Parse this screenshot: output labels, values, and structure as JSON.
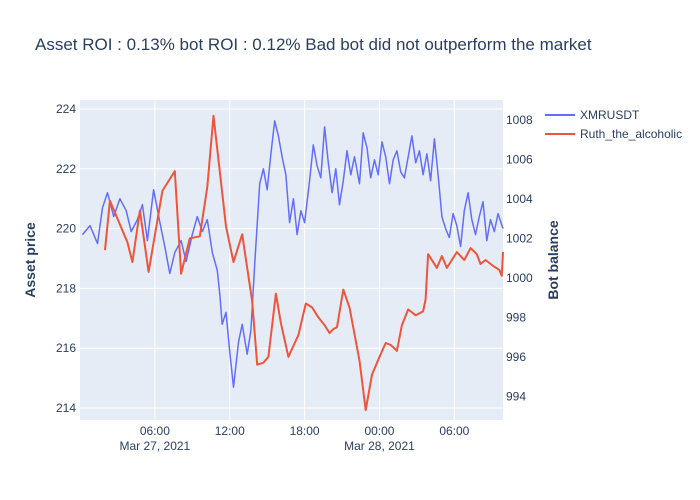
{
  "chart_data": {
    "type": "line",
    "title": "Asset ROI : 0.13% bot ROI : 0.12% Bad bot did not outperform the market",
    "xlabel": "",
    "ylabel": "Asset price",
    "y2label": "Bot balance",
    "x_range_hours": [
      -3.9,
      9.9
    ],
    "xticks": [
      {
        "h": -18,
        "label": "06:00",
        "sub": "Mar 27, 2021"
      },
      {
        "h": -12,
        "label": "12:00",
        "sub": ""
      },
      {
        "h": -6,
        "label": "18:00",
        "sub": ""
      },
      {
        "h": 0,
        "label": "00:00",
        "sub": "Mar 28, 2021"
      },
      {
        "h": 6,
        "label": "06:00",
        "sub": ""
      }
    ],
    "ylim": [
      213.6,
      224.3
    ],
    "yticks": [
      214,
      216,
      218,
      220,
      222,
      224
    ],
    "y2lim": [
      992.8,
      1009.0
    ],
    "y2ticks": [
      994,
      996,
      998,
      1000,
      1002,
      1004,
      1006,
      1008
    ],
    "grid": true,
    "legend_position": "top-right",
    "colors": {
      "asset": "#636efa",
      "bot": "#ef553b",
      "plot_bg": "#e5ecf6",
      "grid": "#ffffff",
      "text": "#2a3f5f"
    },
    "series": [
      {
        "name": "XMRUSDT",
        "axis": "y",
        "color": "#636efa",
        "x": [
          -23.8,
          -23.2,
          -22.6,
          -22.2,
          -21.8,
          -21.3,
          -20.8,
          -20.3,
          -19.9,
          -19.4,
          -19.0,
          -18.6,
          -18.1,
          -17.6,
          -17.2,
          -16.8,
          -16.4,
          -15.9,
          -15.5,
          -15.0,
          -14.6,
          -14.2,
          -13.8,
          -13.4,
          -13.0,
          -12.8,
          -12.6,
          -12.3,
          -12.0,
          -11.7,
          -11.3,
          -11.0,
          -10.6,
          -10.3,
          -10.0,
          -9.6,
          -9.3,
          -9.0,
          -8.7,
          -8.4,
          -8.1,
          -7.8,
          -7.5,
          -7.2,
          -6.9,
          -6.6,
          -6.3,
          -6.0,
          -5.6,
          -5.3,
          -5.0,
          -4.7,
          -4.4,
          -4.1,
          -3.8,
          -3.5,
          -3.2,
          -2.9,
          -2.6,
          -2.3,
          -2.0,
          -1.6,
          -1.3,
          -1.0,
          -0.7,
          -0.4,
          -0.1,
          0.2,
          0.5,
          0.8,
          1.1,
          1.4,
          1.7,
          2.0,
          2.3,
          2.6,
          2.9,
          3.2,
          3.5,
          3.8,
          4.1,
          4.4,
          4.7,
          5.0,
          5.3,
          5.6,
          5.9,
          6.2,
          6.5,
          6.8,
          7.1,
          7.4,
          7.7,
          8.0,
          8.3,
          8.6,
          8.9,
          9.2,
          9.5,
          9.9
        ],
        "y": [
          219.8,
          220.1,
          219.5,
          220.7,
          221.2,
          220.4,
          221.0,
          220.6,
          219.9,
          220.3,
          220.8,
          219.6,
          221.3,
          220.2,
          219.4,
          218.5,
          219.2,
          219.6,
          218.9,
          219.8,
          220.4,
          219.9,
          220.3,
          219.2,
          218.6,
          217.8,
          216.8,
          217.2,
          215.9,
          214.7,
          216.2,
          216.8,
          215.8,
          216.6,
          218.8,
          221.5,
          222.0,
          221.3,
          222.5,
          223.6,
          223.1,
          222.4,
          221.8,
          220.2,
          221.0,
          219.8,
          220.6,
          220.2,
          221.6,
          222.8,
          222.1,
          221.7,
          223.4,
          222.2,
          221.2,
          222.0,
          220.8,
          221.6,
          222.6,
          221.8,
          222.4,
          221.5,
          223.2,
          222.7,
          221.7,
          222.3,
          221.8,
          222.9,
          222.4,
          221.5,
          222.3,
          222.6,
          221.9,
          221.7,
          222.4,
          223.1,
          222.2,
          222.6,
          221.8,
          222.5,
          221.6,
          223.0,
          221.8,
          220.4,
          220.0,
          219.7,
          220.5,
          220.1,
          219.4,
          220.6,
          221.2,
          220.3,
          219.8,
          220.4,
          220.9,
          219.6,
          220.3,
          219.9,
          220.5,
          220.0
        ]
      },
      {
        "name": "Ruth_the_alcoholic",
        "axis": "y2",
        "color": "#ef553b",
        "x": [
          -22.0,
          -21.6,
          -20.2,
          -19.8,
          -19.2,
          -18.5,
          -17.4,
          -16.4,
          -15.9,
          -15.2,
          -14.4,
          -13.8,
          -13.3,
          -12.3,
          -11.7,
          -11.0,
          -10.2,
          -9.8,
          -9.3,
          -8.9,
          -8.3,
          -7.9,
          -7.3,
          -6.5,
          -5.9,
          -5.4,
          -4.9,
          -4.4,
          -4.0,
          -3.7,
          -3.4,
          -2.9,
          -2.4,
          -1.6,
          -1.1,
          -0.6,
          0.0,
          0.5,
          0.9,
          1.4,
          1.8,
          2.3,
          2.9,
          3.5,
          3.7,
          3.9,
          4.6,
          5.0,
          5.4,
          5.7,
          6.2,
          6.8,
          7.3,
          7.8,
          8.1,
          8.5,
          9.1,
          9.6,
          9.8,
          9.9
        ],
        "y": [
          1001.4,
          1003.9,
          1001.8,
          1000.8,
          1003.4,
          1000.3,
          1004.4,
          1005.4,
          1000.2,
          1002.0,
          1002.1,
          1004.6,
          1008.2,
          1002.6,
          1000.8,
          1002.2,
          998.8,
          995.6,
          995.7,
          996.0,
          999.2,
          997.7,
          996.0,
          997.1,
          998.7,
          998.5,
          998.0,
          997.6,
          997.2,
          997.4,
          997.5,
          999.4,
          998.5,
          995.8,
          993.3,
          995.1,
          996.0,
          996.7,
          996.6,
          996.3,
          997.6,
          998.4,
          998.1,
          998.3,
          998.9,
          1001.2,
          1000.5,
          1001.1,
          1000.5,
          1000.8,
          1001.3,
          1000.9,
          1001.5,
          1001.2,
          1000.7,
          1000.9,
          1000.6,
          1000.4,
          1000.1,
          1001.3
        ]
      }
    ]
  }
}
